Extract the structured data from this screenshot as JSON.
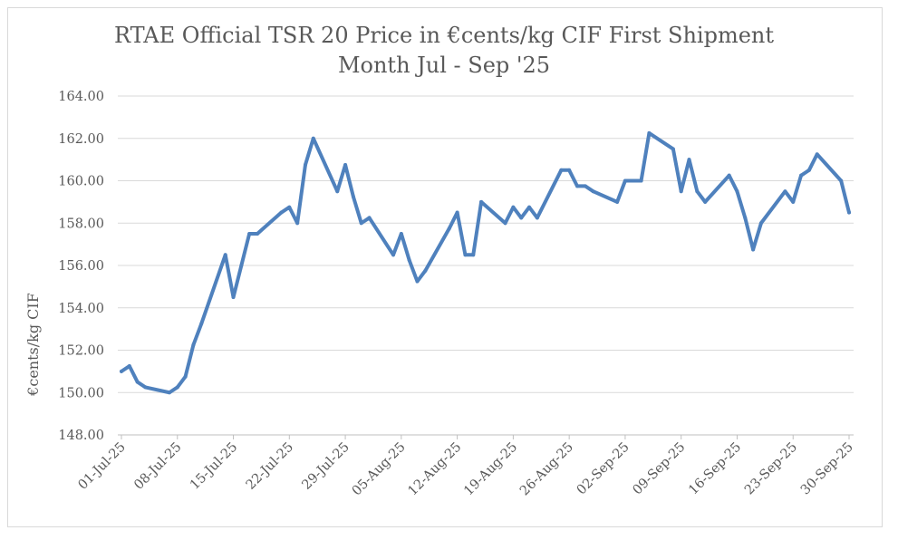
{
  "chart_data": {
    "type": "line",
    "title": "RTAE Official TSR 20 Price in €cents/kg CIF First Shipment",
    "subtitle": "Month Jul - Sep '25",
    "xlabel": "",
    "ylabel": "€cents/kg CIF",
    "ylim": [
      148,
      164
    ],
    "y_ticks": [
      "148.00",
      "150.00",
      "152.00",
      "154.00",
      "156.00",
      "158.00",
      "160.00",
      "162.00",
      "164.00"
    ],
    "grid": true,
    "legend": "none",
    "x_tick_labels": [
      "01-Jul-25",
      "08-Jul-25",
      "15-Jul-25",
      "22-Jul-25",
      "29-Jul-25",
      "05-Aug-25",
      "12-Aug-25",
      "19-Aug-25",
      "26-Aug-25",
      "02-Sep-25",
      "09-Sep-25",
      "16-Sep-25",
      "23-Sep-25",
      "30-Sep-25"
    ],
    "x_start_label": "01-Jul-25",
    "x_span_days": 91,
    "series": [
      {
        "name": "TSR 20",
        "color": "#4f81bd",
        "x": [
          0,
          1,
          2,
          3,
          6,
          7,
          8,
          9,
          10,
          13,
          14,
          15,
          16,
          17,
          20,
          21,
          22,
          23,
          24,
          27,
          28,
          29,
          30,
          31,
          34,
          35,
          36,
          37,
          38,
          41,
          42,
          43,
          44,
          45,
          48,
          49,
          50,
          51,
          52,
          55,
          56,
          57,
          58,
          59,
          62,
          63,
          64,
          65,
          66,
          69,
          70,
          71,
          72,
          73,
          76,
          77,
          78,
          79,
          80,
          83,
          84,
          85,
          86,
          87,
          90,
          91
        ],
        "y": [
          151.0,
          151.25,
          150.5,
          150.25,
          150.0,
          150.25,
          150.75,
          152.25,
          153.25,
          156.5,
          154.5,
          156.0,
          157.5,
          157.5,
          158.5,
          158.75,
          158.0,
          160.75,
          162.0,
          159.5,
          160.75,
          159.25,
          158.0,
          158.25,
          156.5,
          157.5,
          156.25,
          155.25,
          155.75,
          157.75,
          158.5,
          156.5,
          156.5,
          159.0,
          158.0,
          158.75,
          158.25,
          158.75,
          158.25,
          160.5,
          160.5,
          159.75,
          159.75,
          159.5,
          159.0,
          160.0,
          160.0,
          160.0,
          162.25,
          161.5,
          159.5,
          161.0,
          159.5,
          159.0,
          160.25,
          159.5,
          158.25,
          156.75,
          158.0,
          159.5,
          159.0,
          160.25,
          160.5,
          161.25,
          160.0,
          158.5
        ]
      }
    ]
  }
}
